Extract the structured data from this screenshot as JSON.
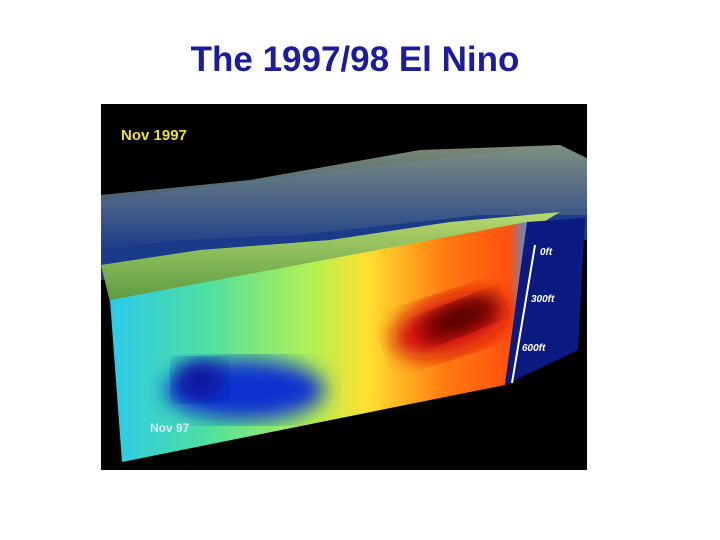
{
  "slide": {
    "title": "The 1997/98 El Nino"
  },
  "image": {
    "date_label": "Nov 1997",
    "section_label": "Nov 97",
    "depth_labels": [
      "0ft",
      "300ft",
      "600ft"
    ]
  }
}
